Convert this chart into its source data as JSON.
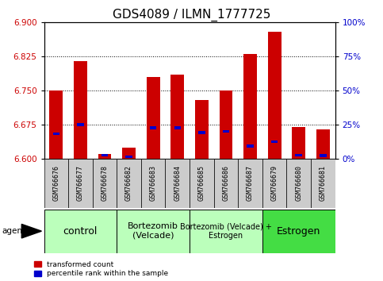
{
  "title": "GDS4089 / ILMN_1777725",
  "samples": [
    "GSM766676",
    "GSM766677",
    "GSM766678",
    "GSM766682",
    "GSM766683",
    "GSM766684",
    "GSM766685",
    "GSM766686",
    "GSM766687",
    "GSM766679",
    "GSM766680",
    "GSM766681"
  ],
  "red_values": [
    6.75,
    6.815,
    6.61,
    6.625,
    6.78,
    6.785,
    6.73,
    6.75,
    6.83,
    6.88,
    6.67,
    6.665
  ],
  "blue_values": [
    6.655,
    6.675,
    6.608,
    6.604,
    6.668,
    6.668,
    6.658,
    6.66,
    6.628,
    6.638,
    6.608,
    6.607
  ],
  "ylim_left": [
    6.6,
    6.9
  ],
  "ylim_right": [
    0,
    100
  ],
  "yticks_left": [
    6.6,
    6.675,
    6.75,
    6.825,
    6.9
  ],
  "yticks_right": [
    0,
    25,
    50,
    75,
    100
  ],
  "yticklabels_right": [
    "0%",
    "25%",
    "50%",
    "75%",
    "100%"
  ],
  "bar_color": "#cc0000",
  "blue_color": "#0000cc",
  "base": 6.6,
  "bar_width": 0.55,
  "blue_bar_width": 0.28,
  "blue_bar_height": 0.006,
  "agent_label": "agent",
  "legend_red": "transformed count",
  "legend_blue": "percentile rank within the sample",
  "title_fontsize": 11,
  "tick_color_left": "#cc0000",
  "tick_color_right": "#0000cc",
  "grid_color": "black",
  "bg_plot": "#ffffff",
  "bg_xtick": "#cccccc",
  "group_defs": [
    {
      "label": "control",
      "start": 0,
      "end": 2,
      "color": "#bbffbb",
      "fontsize": 9
    },
    {
      "label": "Bortezomib\n(Velcade)",
      "start": 3,
      "end": 5,
      "color": "#bbffbb",
      "fontsize": 8
    },
    {
      "label": "Bortezomib (Velcade) +\nEstrogen",
      "start": 6,
      "end": 8,
      "color": "#bbffbb",
      "fontsize": 7
    },
    {
      "label": "Estrogen",
      "start": 9,
      "end": 11,
      "color": "#44dd44",
      "fontsize": 9
    }
  ]
}
